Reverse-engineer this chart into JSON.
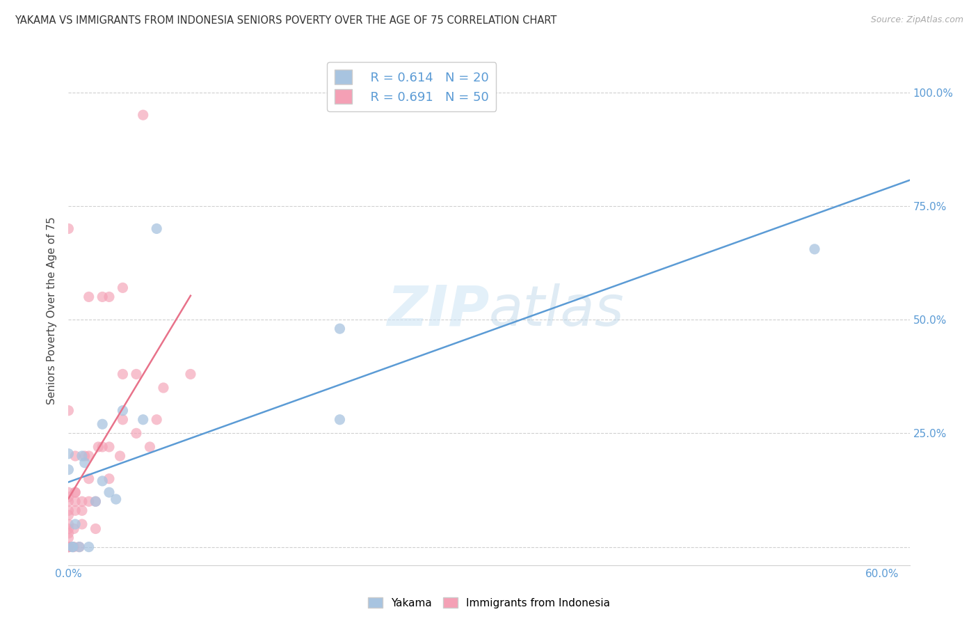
{
  "title": "YAKAMA VS IMMIGRANTS FROM INDONESIA SENIORS POVERTY OVER THE AGE OF 75 CORRELATION CHART",
  "source": "Source: ZipAtlas.com",
  "ylabel": "Seniors Poverty Over the Age of 75",
  "watermark": "ZIPatlas",
  "xlim": [
    0.0,
    0.62
  ],
  "ylim": [
    -0.04,
    1.08
  ],
  "legend_blue_r": "R = 0.614",
  "legend_blue_n": "N = 20",
  "legend_pink_r": "R = 0.691",
  "legend_pink_n": "N = 50",
  "legend_label_blue": "Yakama",
  "legend_label_pink": "Immigrants from Indonesia",
  "blue_color": "#a8c4e0",
  "pink_color": "#f4a0b5",
  "blue_line_color": "#5b9bd5",
  "pink_line_color": "#e8728a",
  "tick_color": "#5b9bd5",
  "scatter_size": 120,
  "blue_points_x": [
    0.0,
    0.0,
    0.003,
    0.003,
    0.005,
    0.008,
    0.01,
    0.012,
    0.015,
    0.02,
    0.025,
    0.025,
    0.03,
    0.035,
    0.04,
    0.055,
    0.065,
    0.2,
    0.2,
    0.55
  ],
  "blue_points_y": [
    0.17,
    0.205,
    0.0,
    0.0,
    0.05,
    0.0,
    0.2,
    0.185,
    0.0,
    0.1,
    0.145,
    0.27,
    0.12,
    0.105,
    0.3,
    0.28,
    0.7,
    0.28,
    0.48,
    0.655
  ],
  "pink_points_x": [
    0.0,
    0.0,
    0.0,
    0.0,
    0.0,
    0.0,
    0.0,
    0.0,
    0.0,
    0.0,
    0.0,
    0.0,
    0.0,
    0.0,
    0.0,
    0.004,
    0.004,
    0.005,
    0.005,
    0.005,
    0.005,
    0.005,
    0.008,
    0.01,
    0.01,
    0.01,
    0.012,
    0.015,
    0.015,
    0.015,
    0.015,
    0.02,
    0.02,
    0.022,
    0.025,
    0.025,
    0.03,
    0.03,
    0.03,
    0.038,
    0.04,
    0.04,
    0.04,
    0.05,
    0.05,
    0.055,
    0.06,
    0.065,
    0.07,
    0.09
  ],
  "pink_points_y": [
    0.0,
    0.0,
    0.0,
    0.0,
    0.02,
    0.03,
    0.04,
    0.05,
    0.07,
    0.08,
    0.1,
    0.11,
    0.12,
    0.3,
    0.7,
    0.0,
    0.04,
    0.08,
    0.1,
    0.12,
    0.12,
    0.2,
    0.0,
    0.05,
    0.08,
    0.1,
    0.2,
    0.1,
    0.15,
    0.2,
    0.55,
    0.04,
    0.1,
    0.22,
    0.22,
    0.55,
    0.15,
    0.22,
    0.55,
    0.2,
    0.28,
    0.38,
    0.57,
    0.25,
    0.38,
    0.95,
    0.22,
    0.28,
    0.35,
    0.38
  ],
  "blue_trend_x": [
    0.0,
    0.62
  ],
  "pink_trend_x": [
    0.0,
    0.09
  ]
}
